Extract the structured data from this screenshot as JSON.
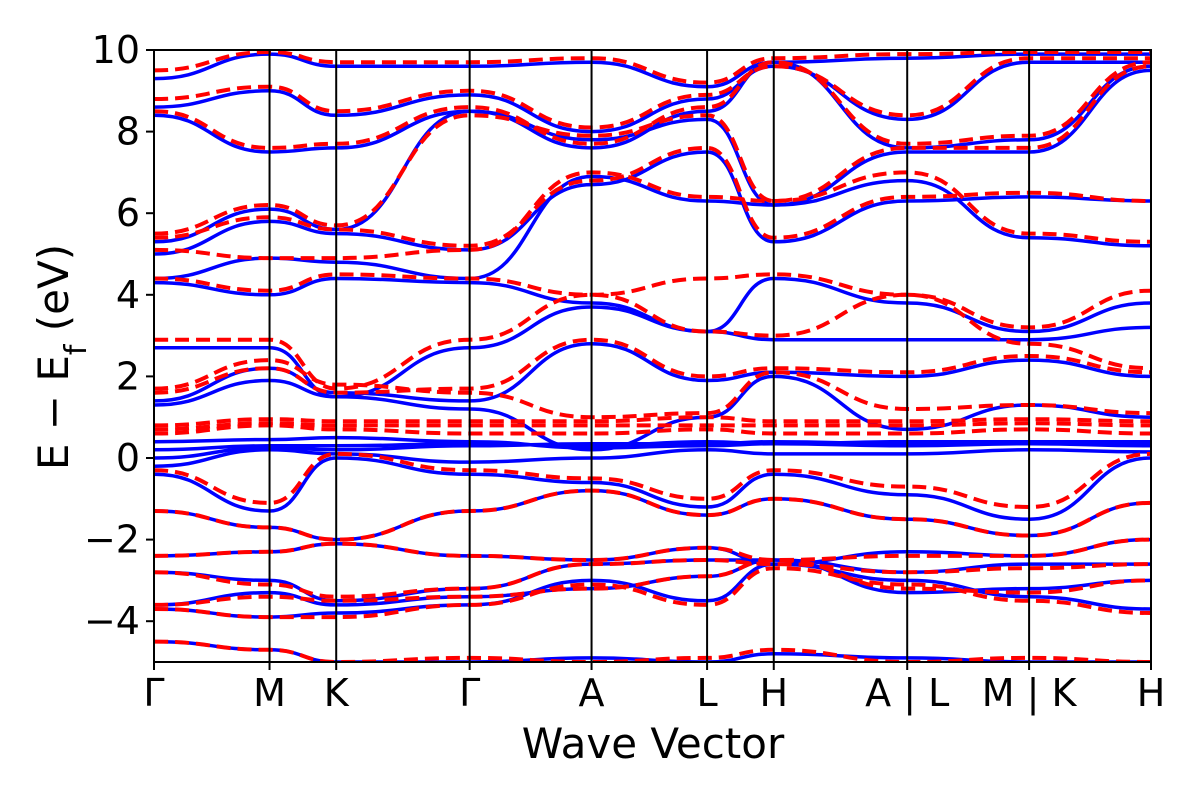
{
  "chart_data": {
    "type": "line",
    "xlabel": "Wave Vector",
    "ylabel": "E − E_f (eV)",
    "ylabel_parts": {
      "main": "E − E",
      "sub": "f",
      "unit": " (eV)"
    },
    "ylim": [
      -5,
      10
    ],
    "yticks": [
      {
        "value": 10,
        "label": "10"
      },
      {
        "value": 8,
        "label": "8"
      },
      {
        "value": 6,
        "label": "6"
      },
      {
        "value": 4,
        "label": "4"
      },
      {
        "value": 2,
        "label": "2"
      },
      {
        "value": 0,
        "label": "0"
      },
      {
        "value": -2,
        "label": "−2"
      },
      {
        "value": -4,
        "label": "−4"
      }
    ],
    "kpath_segments": [
      {
        "from": "Γ",
        "to": "M",
        "length": 1.0
      },
      {
        "from": "M",
        "to": "K",
        "length": 0.577
      },
      {
        "from": "K",
        "to": "Γ",
        "length": 1.155
      },
      {
        "from": "Γ",
        "to": "A",
        "length": 1.055
      },
      {
        "from": "A",
        "to": "L",
        "length": 1.0
      },
      {
        "from": "L",
        "to": "H",
        "length": 0.577
      },
      {
        "from": "H",
        "to": "A",
        "length": 1.155
      },
      {
        "from": "L",
        "to": "M",
        "length": 1.055
      },
      {
        "from": "K",
        "to": "H",
        "length": 1.055
      }
    ],
    "xticks": [
      {
        "pos": 0.0,
        "label": "Γ"
      },
      {
        "pos": 1.0,
        "label": "M"
      },
      {
        "pos": 1.577,
        "label": "K"
      },
      {
        "pos": 2.732,
        "label": "Γ"
      },
      {
        "pos": 3.787,
        "label": "A"
      },
      {
        "pos": 4.787,
        "label": "L"
      },
      {
        "pos": 5.364,
        "label": "H"
      },
      {
        "pos": 6.519,
        "label": "A | L"
      },
      {
        "pos": 7.574,
        "label": "M | K"
      },
      {
        "pos": 8.629,
        "label": "H"
      }
    ],
    "series": [
      {
        "style": "solid",
        "color": "#0000ff",
        "bands": [
          [
            -4.5,
            -4.7,
            -5.0,
            -5.0,
            -4.9,
            -5.0,
            -4.8,
            -4.9,
            -5.0,
            -5.0
          ],
          [
            -3.7,
            -3.9,
            -3.8,
            -3.6,
            -3.0,
            -3.5,
            -2.6,
            -3.0,
            -3.4,
            -3.7
          ],
          [
            -3.6,
            -3.3,
            -3.6,
            -3.4,
            -3.2,
            -2.9,
            -2.5,
            -3.3,
            -3.2,
            -3.0
          ],
          [
            -2.8,
            -3.0,
            -3.5,
            -3.2,
            -2.6,
            -2.5,
            -2.5,
            -2.8,
            -2.6,
            -2.6
          ],
          [
            -2.4,
            -2.3,
            -2.1,
            -2.4,
            -2.5,
            -2.2,
            -2.6,
            -2.3,
            -2.4,
            -2.0
          ],
          [
            -1.3,
            -1.7,
            -2.0,
            -1.3,
            -0.8,
            -1.4,
            -1.0,
            -1.5,
            -1.9,
            -1.1
          ],
          [
            -0.4,
            -1.3,
            0.0,
            -0.4,
            -0.6,
            -1.2,
            -0.4,
            -0.9,
            -1.5,
            0.0
          ],
          [
            -0.2,
            0.2,
            0.1,
            -0.1,
            0.0,
            0.2,
            0.1,
            0.1,
            0.2,
            0.15
          ],
          [
            0.0,
            0.25,
            0.2,
            0.3,
            0.35,
            0.35,
            0.4,
            0.35,
            0.4,
            0.35
          ],
          [
            0.2,
            0.3,
            0.3,
            0.35,
            0.3,
            0.4,
            0.35,
            0.4,
            0.4,
            0.4
          ],
          [
            0.4,
            0.45,
            0.5,
            0.4,
            0.25,
            0.3,
            0.35,
            0.3,
            0.35,
            0.3
          ],
          [
            1.3,
            1.9,
            1.5,
            1.2,
            0.2,
            1.0,
            2.0,
            0.7,
            1.3,
            1.0
          ],
          [
            1.4,
            2.2,
            1.6,
            1.4,
            2.8,
            1.9,
            2.1,
            2.0,
            2.4,
            2.0
          ],
          [
            2.7,
            2.7,
            1.5,
            2.7,
            3.7,
            3.1,
            2.9,
            2.9,
            2.9,
            3.2
          ],
          [
            4.3,
            4.0,
            4.4,
            4.3,
            3.8,
            3.1,
            4.4,
            3.8,
            3.1,
            3.8
          ],
          [
            4.4,
            4.9,
            4.8,
            4.4,
            6.9,
            6.3,
            6.2,
            6.8,
            5.4,
            5.2
          ],
          [
            5.0,
            5.8,
            5.5,
            5.1,
            6.7,
            7.5,
            5.3,
            6.3,
            6.4,
            6.3
          ],
          [
            5.3,
            6.1,
            5.6,
            8.5,
            7.8,
            8.3,
            6.2,
            7.5,
            7.5,
            9.5
          ],
          [
            8.4,
            7.5,
            7.6,
            8.5,
            7.6,
            8.5,
            9.7,
            7.6,
            7.8,
            9.6
          ],
          [
            8.6,
            9.0,
            8.4,
            8.9,
            8.0,
            8.8,
            9.6,
            8.3,
            9.7,
            9.7
          ],
          [
            9.3,
            9.9,
            9.6,
            9.6,
            9.7,
            9.1,
            9.7,
            9.8,
            9.9,
            9.9
          ]
        ]
      },
      {
        "style": "dashed",
        "color": "#ff0000",
        "bands": [
          [
            -4.5,
            -4.7,
            -5.0,
            -4.9,
            -5.0,
            -4.9,
            -4.7,
            -5.0,
            -4.9,
            -5.0
          ],
          [
            -3.7,
            -3.9,
            -3.9,
            -3.6,
            -3.1,
            -3.6,
            -2.7,
            -3.1,
            -3.5,
            -3.8
          ],
          [
            -3.6,
            -3.4,
            -3.5,
            -3.4,
            -3.2,
            -2.9,
            -2.5,
            -3.2,
            -3.3,
            -3.0
          ],
          [
            -2.8,
            -3.1,
            -3.4,
            -3.2,
            -2.6,
            -2.5,
            -2.6,
            -2.8,
            -2.7,
            -2.6
          ],
          [
            -2.4,
            -2.3,
            -2.1,
            -2.4,
            -2.5,
            -2.2,
            -2.5,
            -2.4,
            -2.4,
            -2.0
          ],
          [
            -1.3,
            -1.7,
            -2.0,
            -1.3,
            -0.8,
            -1.4,
            -1.0,
            -1.5,
            -1.9,
            -1.1
          ],
          [
            -0.3,
            -1.1,
            0.1,
            -0.3,
            -0.5,
            -1.0,
            -0.3,
            -0.7,
            -1.2,
            0.1
          ],
          [
            0.6,
            0.8,
            0.7,
            0.6,
            0.6,
            0.7,
            0.6,
            0.6,
            0.7,
            0.6
          ],
          [
            0.7,
            0.85,
            0.8,
            0.8,
            0.8,
            0.8,
            0.8,
            0.8,
            0.85,
            0.8
          ],
          [
            0.8,
            0.95,
            0.9,
            0.9,
            0.9,
            1.0,
            0.9,
            0.9,
            0.95,
            0.9
          ],
          [
            1.7,
            2.4,
            1.8,
            1.6,
            1.0,
            1.1,
            2.1,
            1.2,
            1.3,
            1.1
          ],
          [
            1.6,
            2.2,
            1.6,
            1.7,
            2.9,
            2.0,
            2.2,
            2.1,
            2.5,
            2.1
          ],
          [
            2.9,
            2.9,
            1.7,
            2.9,
            4.0,
            3.1,
            3.0,
            4.0,
            2.8,
            2.2
          ],
          [
            4.4,
            4.1,
            4.5,
            4.4,
            4.0,
            4.4,
            4.5,
            4.0,
            3.2,
            4.1
          ],
          [
            5.1,
            4.9,
            4.9,
            5.1,
            7.0,
            6.4,
            6.3,
            7.0,
            5.5,
            5.3
          ],
          [
            5.4,
            5.9,
            5.6,
            5.2,
            6.8,
            7.6,
            5.4,
            6.4,
            6.5,
            6.3
          ],
          [
            5.5,
            6.2,
            5.7,
            8.4,
            7.9,
            8.4,
            6.3,
            7.6,
            7.6,
            9.6
          ],
          [
            8.5,
            7.6,
            7.7,
            8.6,
            7.7,
            8.6,
            9.7,
            7.7,
            7.9,
            9.7
          ],
          [
            8.8,
            9.1,
            8.5,
            9.0,
            8.1,
            8.9,
            9.6,
            8.4,
            9.8,
            9.8
          ],
          [
            9.5,
            9.95,
            9.7,
            9.7,
            9.8,
            9.2,
            9.8,
            9.9,
            9.95,
            9.95
          ]
        ]
      }
    ]
  }
}
